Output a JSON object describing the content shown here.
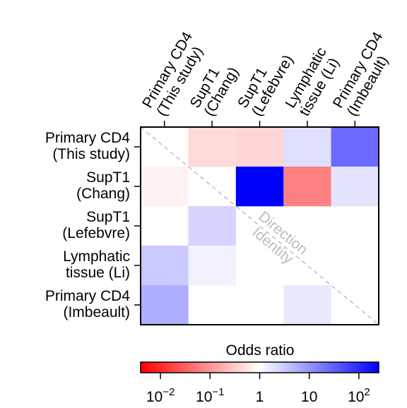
{
  "chart_data": {
    "type": "heatmap",
    "rows": [
      [
        "Primary CD4",
        "(This study)"
      ],
      [
        "SupT1",
        "(Chang)"
      ],
      [
        "SupT1",
        "(Lefebvre)"
      ],
      [
        "Lymphatic",
        "tissue (Li)"
      ],
      [
        "Primary CD4",
        "(Imbeault)"
      ]
    ],
    "columns": [
      [
        "Primary CD4",
        "(This study)"
      ],
      [
        "SupT1",
        "(Chang)"
      ],
      [
        "SupT1",
        "(Lefebvre)"
      ],
      [
        "Lymphatic",
        "tissue (Li)"
      ],
      [
        "Primary CD4",
        "(Imbeault)"
      ]
    ],
    "log10_values": [
      [
        null,
        -0.35,
        -0.4,
        0.3,
        1.4
      ],
      [
        -0.12,
        null,
        2.4,
        -1.2,
        0.25
      ],
      [
        0,
        0.4,
        null,
        0,
        0
      ],
      [
        0.5,
        0.12,
        0,
        null,
        0
      ],
      [
        0.75,
        0,
        0,
        0.2,
        null
      ]
    ],
    "diagonal_annotation": [
      "Direction",
      "Identity"
    ],
    "colorbar": {
      "title": "Odds ratio",
      "log10_range": [
        -2.4,
        2.4
      ],
      "tick_log10": [
        -2,
        -1,
        0,
        1,
        2
      ],
      "tick_labels": [
        {
          "base": "10",
          "exp": "−2"
        },
        {
          "base": "10",
          "exp": "−1"
        },
        {
          "base": "1",
          "exp": ""
        },
        {
          "base": "10",
          "exp": ""
        },
        {
          "base": "10",
          "exp": "2"
        }
      ],
      "colors": {
        "low": "#ff0000",
        "mid": "#ffffff",
        "high": "#0000ff"
      }
    },
    "diagonal_color": "#bdbdbd"
  }
}
